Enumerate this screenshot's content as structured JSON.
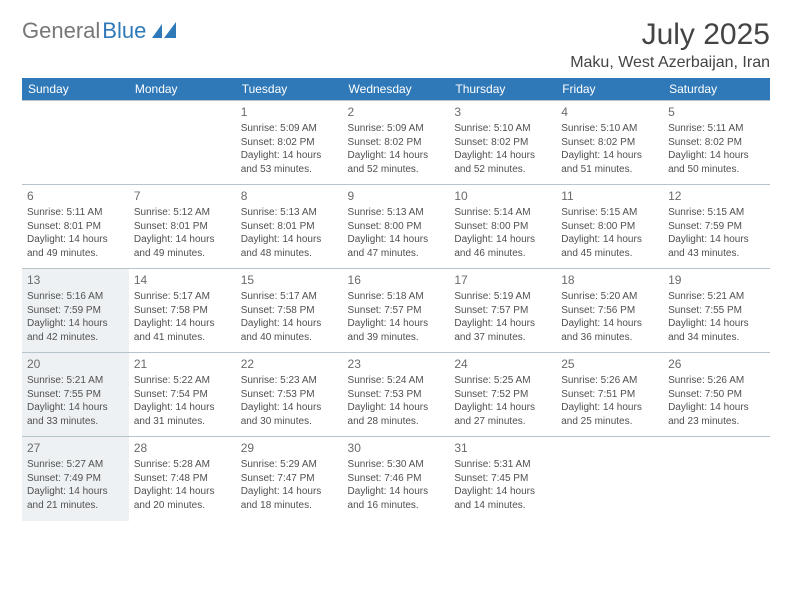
{
  "brand": {
    "part1": "General",
    "part2": "Blue"
  },
  "title": "July 2025",
  "location": "Maku, West Azerbaijan, Iran",
  "colors": {
    "header_bg": "#2f79b9",
    "header_text": "#ffffff",
    "border": "#b8c4cc",
    "highlight_bg": "#eef1f3",
    "body_text": "#505050",
    "title_text": "#444444"
  },
  "layout": {
    "columns": 7,
    "rows": 5,
    "cell_font_size": 10,
    "day_font_size": 12
  },
  "day_headers": [
    "Sunday",
    "Monday",
    "Tuesday",
    "Wednesday",
    "Thursday",
    "Friday",
    "Saturday"
  ],
  "weeks": [
    [
      null,
      null,
      {
        "n": "1",
        "sr": "5:09 AM",
        "ss": "8:02 PM",
        "dl": "14 hours and 53 minutes."
      },
      {
        "n": "2",
        "sr": "5:09 AM",
        "ss": "8:02 PM",
        "dl": "14 hours and 52 minutes."
      },
      {
        "n": "3",
        "sr": "5:10 AM",
        "ss": "8:02 PM",
        "dl": "14 hours and 52 minutes."
      },
      {
        "n": "4",
        "sr": "5:10 AM",
        "ss": "8:02 PM",
        "dl": "14 hours and 51 minutes."
      },
      {
        "n": "5",
        "sr": "5:11 AM",
        "ss": "8:02 PM",
        "dl": "14 hours and 50 minutes."
      }
    ],
    [
      {
        "n": "6",
        "sr": "5:11 AM",
        "ss": "8:01 PM",
        "dl": "14 hours and 49 minutes."
      },
      {
        "n": "7",
        "sr": "5:12 AM",
        "ss": "8:01 PM",
        "dl": "14 hours and 49 minutes."
      },
      {
        "n": "8",
        "sr": "5:13 AM",
        "ss": "8:01 PM",
        "dl": "14 hours and 48 minutes."
      },
      {
        "n": "9",
        "sr": "5:13 AM",
        "ss": "8:00 PM",
        "dl": "14 hours and 47 minutes."
      },
      {
        "n": "10",
        "sr": "5:14 AM",
        "ss": "8:00 PM",
        "dl": "14 hours and 46 minutes."
      },
      {
        "n": "11",
        "sr": "5:15 AM",
        "ss": "8:00 PM",
        "dl": "14 hours and 45 minutes."
      },
      {
        "n": "12",
        "sr": "5:15 AM",
        "ss": "7:59 PM",
        "dl": "14 hours and 43 minutes."
      }
    ],
    [
      {
        "n": "13",
        "sr": "5:16 AM",
        "ss": "7:59 PM",
        "dl": "14 hours and 42 minutes.",
        "hl": true
      },
      {
        "n": "14",
        "sr": "5:17 AM",
        "ss": "7:58 PM",
        "dl": "14 hours and 41 minutes."
      },
      {
        "n": "15",
        "sr": "5:17 AM",
        "ss": "7:58 PM",
        "dl": "14 hours and 40 minutes."
      },
      {
        "n": "16",
        "sr": "5:18 AM",
        "ss": "7:57 PM",
        "dl": "14 hours and 39 minutes."
      },
      {
        "n": "17",
        "sr": "5:19 AM",
        "ss": "7:57 PM",
        "dl": "14 hours and 37 minutes."
      },
      {
        "n": "18",
        "sr": "5:20 AM",
        "ss": "7:56 PM",
        "dl": "14 hours and 36 minutes."
      },
      {
        "n": "19",
        "sr": "5:21 AM",
        "ss": "7:55 PM",
        "dl": "14 hours and 34 minutes."
      }
    ],
    [
      {
        "n": "20",
        "sr": "5:21 AM",
        "ss": "7:55 PM",
        "dl": "14 hours and 33 minutes.",
        "hl": true
      },
      {
        "n": "21",
        "sr": "5:22 AM",
        "ss": "7:54 PM",
        "dl": "14 hours and 31 minutes."
      },
      {
        "n": "22",
        "sr": "5:23 AM",
        "ss": "7:53 PM",
        "dl": "14 hours and 30 minutes."
      },
      {
        "n": "23",
        "sr": "5:24 AM",
        "ss": "7:53 PM",
        "dl": "14 hours and 28 minutes."
      },
      {
        "n": "24",
        "sr": "5:25 AM",
        "ss": "7:52 PM",
        "dl": "14 hours and 27 minutes."
      },
      {
        "n": "25",
        "sr": "5:26 AM",
        "ss": "7:51 PM",
        "dl": "14 hours and 25 minutes."
      },
      {
        "n": "26",
        "sr": "5:26 AM",
        "ss": "7:50 PM",
        "dl": "14 hours and 23 minutes."
      }
    ],
    [
      {
        "n": "27",
        "sr": "5:27 AM",
        "ss": "7:49 PM",
        "dl": "14 hours and 21 minutes.",
        "hl": true
      },
      {
        "n": "28",
        "sr": "5:28 AM",
        "ss": "7:48 PM",
        "dl": "14 hours and 20 minutes."
      },
      {
        "n": "29",
        "sr": "5:29 AM",
        "ss": "7:47 PM",
        "dl": "14 hours and 18 minutes."
      },
      {
        "n": "30",
        "sr": "5:30 AM",
        "ss": "7:46 PM",
        "dl": "14 hours and 16 minutes."
      },
      {
        "n": "31",
        "sr": "5:31 AM",
        "ss": "7:45 PM",
        "dl": "14 hours and 14 minutes."
      },
      null,
      null
    ]
  ],
  "labels": {
    "sunrise": "Sunrise:",
    "sunset": "Sunset:",
    "daylight": "Daylight:"
  }
}
